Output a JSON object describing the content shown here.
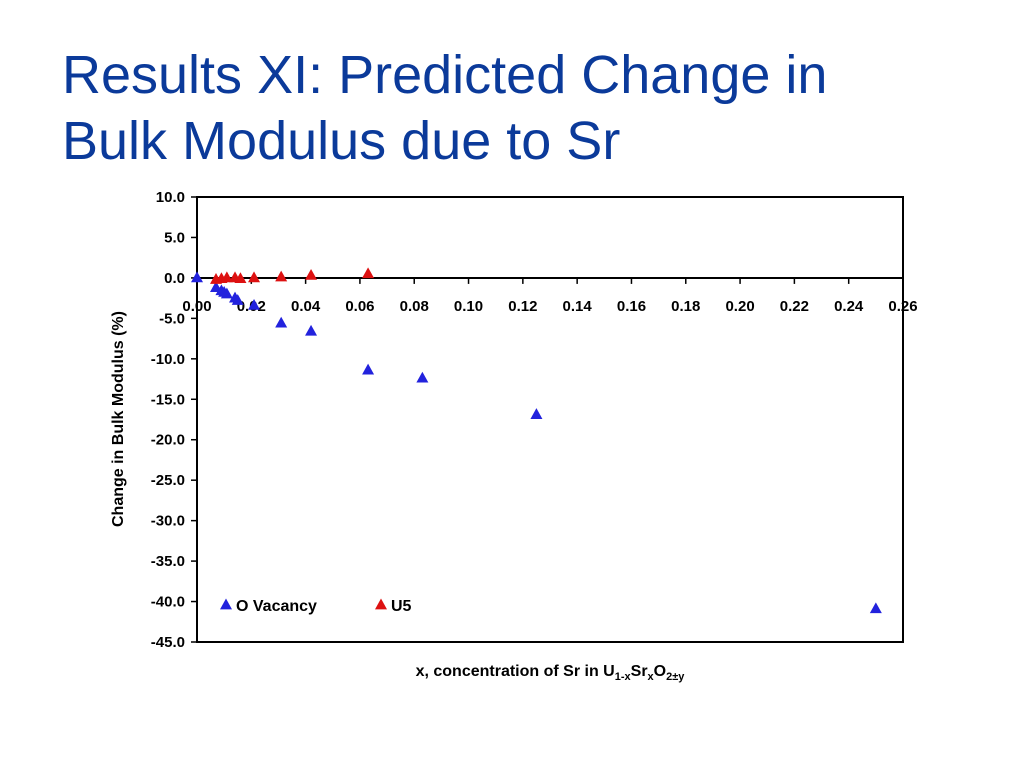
{
  "slide": {
    "title_line1": "Results XI: Predicted Change in",
    "title_line2": "Bulk Modulus due to Sr"
  },
  "chart_data": {
    "type": "scatter",
    "title": "",
    "xlabel": {
      "prefix": "x, concentration of Sr in U",
      "sub1": "1-x",
      "mid1": "Sr",
      "sub2": "x",
      "mid2": "O",
      "sub3": "2±y"
    },
    "ylabel": "Change in Bulk Modulus (%)",
    "xlim": [
      0,
      0.26
    ],
    "ylim": [
      -45,
      10
    ],
    "x_ticks": [
      "0.00",
      "0.02",
      "0.04",
      "0.06",
      "0.08",
      "0.10",
      "0.12",
      "0.14",
      "0.16",
      "0.18",
      "0.20",
      "0.22",
      "0.24",
      "0.26"
    ],
    "y_ticks": [
      "10.0",
      "5.0",
      "0.0",
      "-5.0",
      "-10.0",
      "-15.0",
      "-20.0",
      "-25.0",
      "-30.0",
      "-35.0",
      "-40.0",
      "-45.0"
    ],
    "grid": false,
    "legend_position": "bottom-left",
    "series": [
      {
        "name": "O Vacancy",
        "color": "#2222dd",
        "marker": "triangle",
        "points": [
          {
            "x": 0.0,
            "y": 0.0
          },
          {
            "x": 0.007,
            "y": -1.2
          },
          {
            "x": 0.009,
            "y": -1.6
          },
          {
            "x": 0.01,
            "y": -1.8
          },
          {
            "x": 0.011,
            "y": -2.0
          },
          {
            "x": 0.014,
            "y": -2.5
          },
          {
            "x": 0.015,
            "y": -2.8
          },
          {
            "x": 0.021,
            "y": -3.4
          },
          {
            "x": 0.031,
            "y": -5.6
          },
          {
            "x": 0.042,
            "y": -6.6
          },
          {
            "x": 0.063,
            "y": -11.4
          },
          {
            "x": 0.083,
            "y": -12.4
          },
          {
            "x": 0.125,
            "y": -16.9
          },
          {
            "x": 0.25,
            "y": -40.9
          }
        ]
      },
      {
        "name": "U5",
        "color": "#dd1111",
        "marker": "triangle",
        "points": [
          {
            "x": 0.007,
            "y": -0.2
          },
          {
            "x": 0.009,
            "y": -0.1
          },
          {
            "x": 0.011,
            "y": 0.0
          },
          {
            "x": 0.014,
            "y": 0.0
          },
          {
            "x": 0.016,
            "y": -0.1
          },
          {
            "x": 0.021,
            "y": 0.0
          },
          {
            "x": 0.031,
            "y": 0.1
          },
          {
            "x": 0.042,
            "y": 0.3
          },
          {
            "x": 0.063,
            "y": 0.5
          }
        ]
      }
    ]
  }
}
